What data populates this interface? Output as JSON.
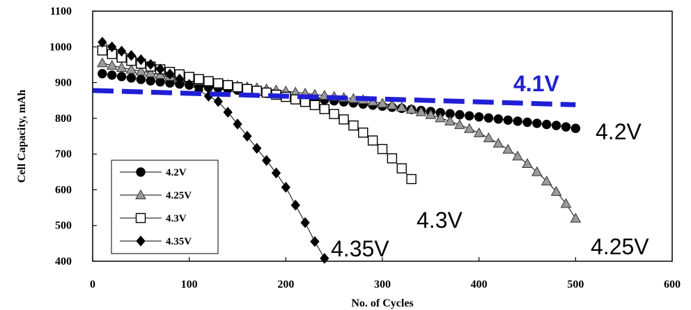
{
  "chart_data": {
    "type": "line",
    "xlabel": "No. of Cycles",
    "ylabel": "Cell Capacity, mAh",
    "xlim": [
      0,
      600
    ],
    "ylim": [
      400,
      1100
    ],
    "xticks": [
      0,
      100,
      200,
      300,
      400,
      500,
      600
    ],
    "yticks": [
      400,
      500,
      600,
      700,
      800,
      900,
      1000,
      1100
    ],
    "grid": false,
    "legend_position": "bottom-left",
    "series": [
      {
        "name": "4.2V",
        "marker": "circle",
        "color": "#000000",
        "fill": "#000000",
        "x": [
          10,
          20,
          30,
          40,
          50,
          60,
          70,
          80,
          90,
          100,
          110,
          120,
          130,
          140,
          150,
          160,
          170,
          180,
          190,
          200,
          210,
          220,
          230,
          240,
          250,
          260,
          270,
          280,
          290,
          300,
          310,
          320,
          330,
          340,
          350,
          360,
          370,
          380,
          390,
          400,
          410,
          420,
          430,
          440,
          450,
          460,
          470,
          480,
          490,
          500
        ],
        "y": [
          925,
          921,
          917,
          913,
          909,
          905,
          902,
          899,
          896,
          893,
          890,
          887,
          885,
          882,
          879,
          876,
          873,
          870,
          867,
          864,
          861,
          858,
          855,
          852,
          849,
          846,
          843,
          840,
          837,
          834,
          831,
          828,
          825,
          822,
          819,
          816,
          813,
          810,
          807,
          804,
          801,
          798,
          795,
          792,
          789,
          786,
          783,
          780,
          776,
          772
        ]
      },
      {
        "name": "4.25V",
        "marker": "triangle",
        "color": "#000000",
        "fill": "#9a9a9a",
        "x": [
          10,
          20,
          30,
          40,
          50,
          60,
          70,
          80,
          90,
          100,
          110,
          120,
          130,
          140,
          150,
          160,
          170,
          180,
          190,
          200,
          210,
          220,
          230,
          240,
          250,
          260,
          270,
          280,
          290,
          300,
          310,
          320,
          330,
          340,
          350,
          360,
          370,
          380,
          390,
          400,
          410,
          420,
          430,
          440,
          450,
          460,
          470,
          480,
          490,
          500
        ],
        "y": [
          955,
          948,
          942,
          937,
          932,
          927,
          922,
          917,
          913,
          909,
          905,
          901,
          897,
          894,
          891,
          888,
          885,
          882,
          879,
          876,
          873,
          870,
          867,
          864,
          861,
          858,
          855,
          852,
          847,
          842,
          837,
          831,
          825,
          818,
          810,
          801,
          792,
          782,
          771,
          759,
          745,
          730,
          713,
          694,
          673,
          650,
          624,
          595,
          561,
          520
        ]
      },
      {
        "name": "4.3V",
        "marker": "square",
        "color": "#000000",
        "fill": "#ffffff",
        "x": [
          10,
          20,
          30,
          40,
          50,
          60,
          70,
          80,
          90,
          100,
          110,
          120,
          130,
          140,
          150,
          160,
          170,
          180,
          190,
          200,
          210,
          220,
          230,
          240,
          250,
          260,
          270,
          280,
          290,
          300,
          310,
          320,
          330
        ],
        "y": [
          990,
          980,
          970,
          961,
          953,
          945,
          937,
          930,
          923,
          916,
          910,
          904,
          898,
          893,
          887,
          882,
          877,
          872,
          866,
          860,
          853,
          846,
          837,
          826,
          812,
          797,
          780,
          760,
          738,
          714,
          688,
          660,
          630
        ]
      },
      {
        "name": "4.35V",
        "marker": "diamond",
        "color": "#000000",
        "fill": "#000000",
        "x": [
          10,
          20,
          30,
          40,
          50,
          60,
          70,
          80,
          90,
          100,
          110,
          120,
          130,
          140,
          150,
          160,
          170,
          180,
          190,
          200,
          210,
          220,
          230,
          240
        ],
        "y": [
          1013,
          1000,
          988,
          976,
          964,
          951,
          938,
          924,
          910,
          895,
          879,
          862,
          847,
          817,
          784,
          750,
          716,
          682,
          647,
          607,
          557,
          508,
          455,
          408
        ]
      },
      {
        "name": "4.1V",
        "marker": "none",
        "color": "#1f1fd6",
        "dashed": true,
        "x": [
          0,
          500
        ],
        "y": [
          878,
          838
        ]
      }
    ],
    "annotations": [
      {
        "text": "4.1V",
        "color": "#1f1fd6"
      },
      {
        "text": "4.2V",
        "color": "#000000"
      },
      {
        "text": "4.3V",
        "color": "#000000"
      },
      {
        "text": "4.35V",
        "color": "#000000"
      },
      {
        "text": "4.25V",
        "color": "#000000"
      }
    ]
  }
}
